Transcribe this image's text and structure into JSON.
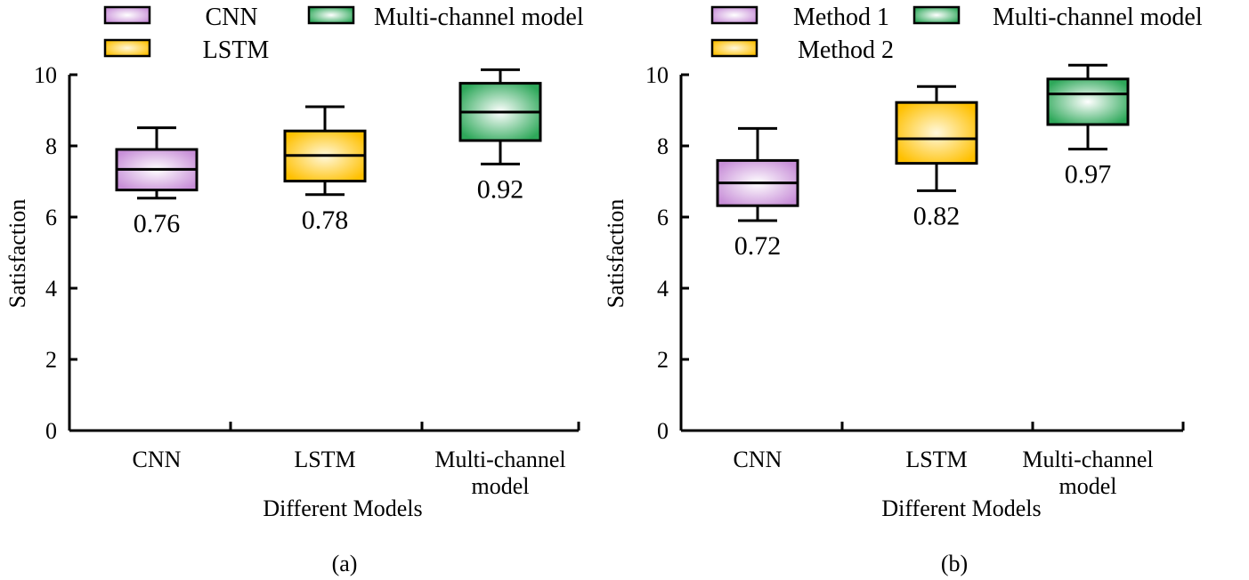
{
  "chart_data": [
    {
      "type": "box",
      "panel_label": "(a)",
      "xlabel": "Different Models",
      "ylabel": "Satisfaction",
      "ylim": [
        0,
        10
      ],
      "yticks": [
        "0",
        "2",
        "4",
        "6",
        "8",
        "10"
      ],
      "categories": [
        "CNN",
        "LSTM",
        "Multi-channel model"
      ],
      "category_lines": [
        [
          "CNN"
        ],
        [
          "LSTM"
        ],
        [
          "Multi-channel",
          "model"
        ]
      ],
      "legend": [
        "CNN",
        "LSTM",
        "Multi-channel model"
      ],
      "boxes": [
        {
          "min": 6.53,
          "q1": 6.76,
          "median": 7.34,
          "q3": 7.9,
          "max": 8.51,
          "annotation": "0.76"
        },
        {
          "min": 6.63,
          "q1": 7.01,
          "median": 7.73,
          "q3": 8.42,
          "max": 9.1,
          "annotation": "0.78"
        },
        {
          "min": 7.49,
          "q1": 8.15,
          "median": 8.95,
          "q3": 9.76,
          "max": 10.14,
          "annotation": "0.92"
        }
      ]
    },
    {
      "type": "box",
      "panel_label": "(b)",
      "xlabel": "Different Models",
      "ylabel": "Satisfaction",
      "ylim": [
        0,
        10
      ],
      "yticks": [
        "0",
        "2",
        "4",
        "6",
        "8",
        "10"
      ],
      "categories": [
        "CNN",
        "LSTM",
        "Multi-channel model"
      ],
      "category_lines": [
        [
          "CNN"
        ],
        [
          "LSTM"
        ],
        [
          "Multi-channel",
          "model"
        ]
      ],
      "legend": [
        "Method 1",
        "Method 2",
        "Multi-channel model"
      ],
      "boxes": [
        {
          "min": 5.9,
          "q1": 6.32,
          "median": 6.96,
          "q3": 7.59,
          "max": 8.49,
          "annotation": "0.72"
        },
        {
          "min": 6.74,
          "q1": 7.51,
          "median": 8.2,
          "q3": 9.22,
          "max": 9.67,
          "annotation": "0.82"
        },
        {
          "min": 7.91,
          "q1": 8.6,
          "median": 9.46,
          "q3": 9.88,
          "max": 10.27,
          "annotation": "0.97"
        }
      ]
    }
  ],
  "colors": {
    "series": [
      {
        "edge": "#c88fd8",
        "center": "#ffffff"
      },
      {
        "edge": "#ffc000",
        "center": "#fff8dc"
      },
      {
        "edge": "#2ea85a",
        "center": "#ffffff"
      }
    ]
  }
}
